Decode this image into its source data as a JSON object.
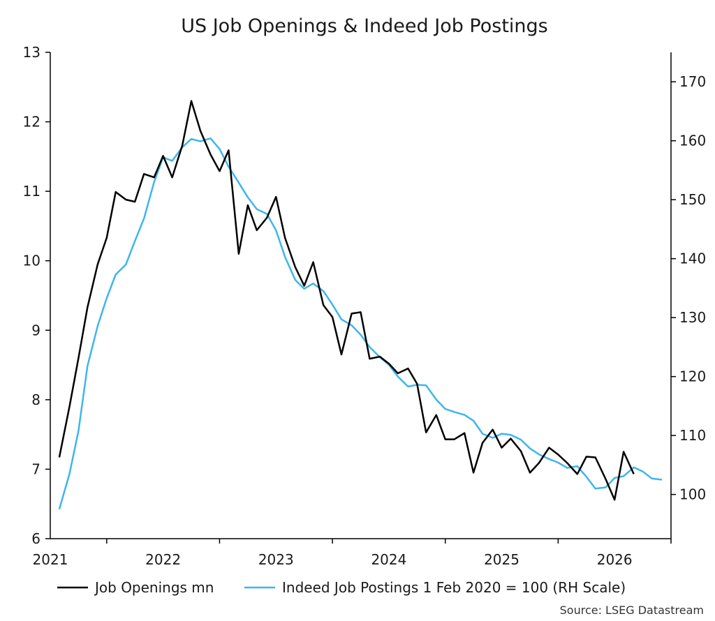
{
  "chart_data": {
    "type": "line",
    "title": "US Job Openings & Indeed Job Postings",
    "source": "Source: LSEG Datastream",
    "legend_position": "bottom",
    "grid": false,
    "x_ticks": [
      "2021",
      "2022",
      "2023",
      "2024",
      "2025",
      "2026"
    ],
    "y_left": {
      "range": [
        6,
        13
      ],
      "ticks": [
        "6",
        "7",
        "8",
        "9",
        "10",
        "11",
        "12",
        "13"
      ]
    },
    "y_right": {
      "range": [
        92.5,
        175
      ],
      "ticks": [
        "100",
        "110",
        "120",
        "130",
        "140",
        "150",
        "160",
        "170"
      ]
    },
    "x_range": [
      2020.5,
      2026.0
    ],
    "series": [
      {
        "name": "Job Openings mn",
        "axis": "left",
        "color": "#000000",
        "x": [
          2020.58,
          2020.67,
          2020.75,
          2020.83,
          2020.92,
          2021.0,
          2021.08,
          2021.17,
          2021.25,
          2021.33,
          2021.42,
          2021.5,
          2021.58,
          2021.67,
          2021.75,
          2021.83,
          2021.92,
          2022.0,
          2022.08,
          2022.17,
          2022.25,
          2022.33,
          2022.42,
          2022.5,
          2022.58,
          2022.67,
          2022.75,
          2022.83,
          2022.92,
          2023.0,
          2023.08,
          2023.17,
          2023.25,
          2023.33,
          2023.42,
          2023.5,
          2023.58,
          2023.67,
          2023.75,
          2023.83,
          2023.92,
          2024.0,
          2024.08,
          2024.17,
          2024.25,
          2024.33,
          2024.42,
          2024.5,
          2024.58,
          2024.67,
          2024.75,
          2024.83,
          2024.92,
          2025.0,
          2025.08,
          2025.17,
          2025.25,
          2025.33,
          2025.42,
          2025.5,
          2025.58,
          2025.67
        ],
        "values": [
          7.17,
          7.9,
          8.6,
          9.33,
          9.95,
          10.33,
          10.99,
          10.88,
          10.85,
          11.25,
          11.2,
          11.51,
          11.2,
          11.66,
          12.3,
          11.87,
          11.53,
          11.29,
          11.59,
          10.1,
          10.8,
          10.44,
          10.62,
          10.92,
          10.33,
          9.91,
          9.64,
          9.98,
          9.36,
          9.19,
          8.65,
          9.24,
          9.26,
          8.59,
          8.62,
          8.52,
          8.38,
          8.45,
          8.23,
          7.53,
          7.78,
          7.43,
          7.43,
          7.52,
          6.95,
          7.38,
          7.57,
          7.31,
          7.44,
          7.26,
          6.95,
          7.09,
          7.31,
          7.21,
          7.09,
          6.93,
          7.18,
          7.17,
          6.86,
          6.56,
          7.25,
          6.93
        ]
      },
      {
        "name": "Indeed Job Postings 1 Feb 2020 = 100 (RH Scale)",
        "axis": "right",
        "color": "#3db5ee",
        "x": [
          2020.58,
          2020.67,
          2020.75,
          2020.83,
          2020.92,
          2021.0,
          2021.08,
          2021.17,
          2021.25,
          2021.33,
          2021.42,
          2021.5,
          2021.58,
          2021.67,
          2021.75,
          2021.83,
          2021.92,
          2022.0,
          2022.08,
          2022.17,
          2022.25,
          2022.33,
          2022.42,
          2022.5,
          2022.58,
          2022.67,
          2022.75,
          2022.83,
          2022.92,
          2023.0,
          2023.08,
          2023.17,
          2023.25,
          2023.33,
          2023.42,
          2023.5,
          2023.58,
          2023.67,
          2023.75,
          2023.83,
          2023.92,
          2024.0,
          2024.08,
          2024.17,
          2024.25,
          2024.33,
          2024.42,
          2024.5,
          2024.58,
          2024.67,
          2024.75,
          2024.83,
          2024.92,
          2025.0,
          2025.08,
          2025.17,
          2025.25,
          2025.33,
          2025.42,
          2025.5,
          2025.58,
          2025.67,
          2025.75,
          2025.83,
          2025.92
        ],
        "values": [
          97.5,
          103.5,
          110.8,
          121.8,
          128.6,
          133.3,
          137.3,
          139.0,
          143.0,
          146.8,
          153.0,
          157.2,
          156.6,
          158.9,
          160.3,
          159.9,
          160.4,
          158.6,
          155.6,
          152.9,
          150.4,
          148.4,
          147.6,
          144.8,
          140.3,
          136.4,
          134.9,
          135.8,
          134.5,
          132.2,
          129.7,
          128.7,
          127.1,
          125.0,
          123.3,
          122.0,
          120.0,
          118.3,
          118.6,
          118.5,
          116.1,
          114.5,
          114.0,
          113.5,
          112.5,
          110.3,
          109.6,
          110.3,
          110.1,
          109.3,
          107.8,
          106.8,
          106.0,
          105.4,
          104.5,
          104.8,
          103.0,
          101.0,
          101.2,
          102.8,
          103.1,
          104.6,
          103.9,
          102.7,
          102.5
        ]
      }
    ]
  }
}
